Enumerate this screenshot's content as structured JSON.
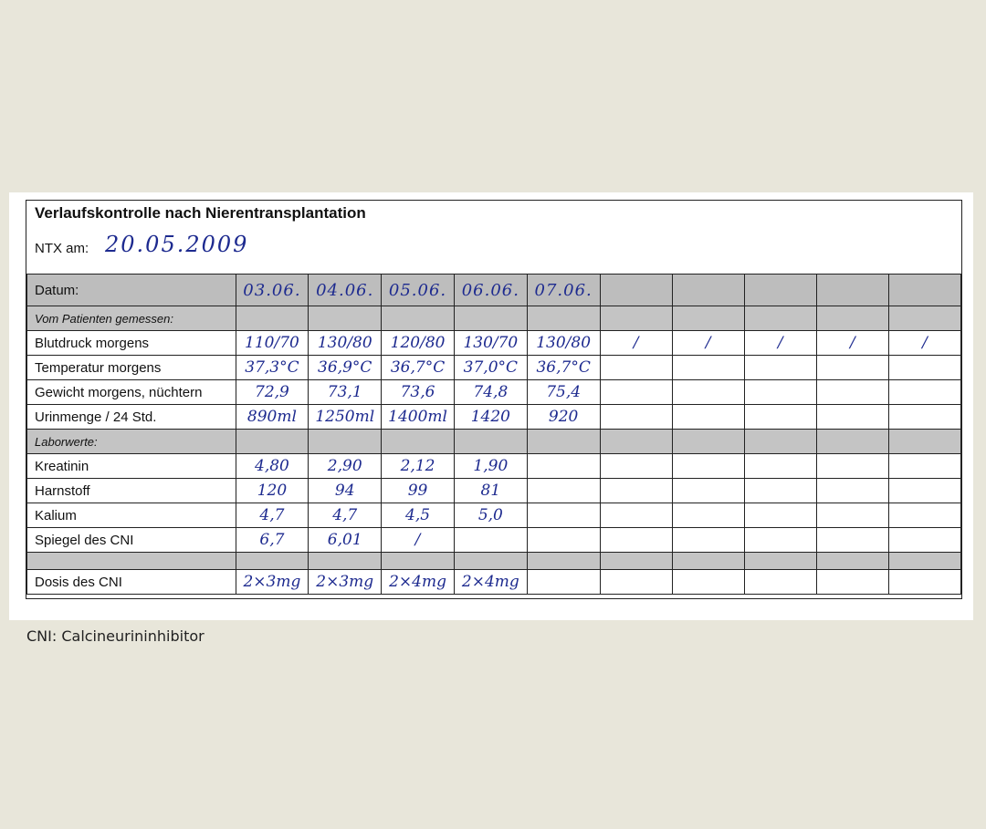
{
  "form": {
    "title": "Verlaufskontrolle nach Nierentransplantation",
    "ntx_label": "NTX am:",
    "ntx_date": "20.05.2009"
  },
  "table": {
    "header": {
      "label": "Datum:",
      "values": [
        "03.06.",
        "04.06.",
        "05.06.",
        "06.06.",
        "07.06.",
        "",
        "",
        "",
        "",
        ""
      ]
    },
    "rows": [
      {
        "type": "section",
        "label": "Vom Patienten gemessen:"
      },
      {
        "type": "data",
        "label": "Blutdruck morgens",
        "values": [
          "110/70",
          "130/80",
          "120/80",
          "130/70",
          "130/80",
          "/",
          "/",
          "/",
          "/",
          "/"
        ]
      },
      {
        "type": "data",
        "label": "Temperatur morgens",
        "values": [
          "37,3°C",
          "36,9°C",
          "36,7°C",
          "37,0°C",
          "36,7°C",
          "",
          "",
          "",
          "",
          ""
        ]
      },
      {
        "type": "data",
        "label": "Gewicht morgens, nüchtern",
        "values": [
          "72,9",
          "73,1",
          "73,6",
          "74,8",
          "75,4",
          "",
          "",
          "",
          "",
          ""
        ]
      },
      {
        "type": "data",
        "label": "Urinmenge / 24 Std.",
        "values": [
          "890ml",
          "1250ml",
          "1400ml",
          "1420",
          "920",
          "",
          "",
          "",
          "",
          ""
        ]
      },
      {
        "type": "section",
        "label": "Laborwerte:"
      },
      {
        "type": "data",
        "label": "Kreatinin",
        "values": [
          "4,80",
          "2,90",
          "2,12",
          "1,90",
          "",
          "",
          "",
          "",
          "",
          ""
        ]
      },
      {
        "type": "data",
        "label": "Harnstoff",
        "values": [
          "120",
          "94",
          "99",
          "81",
          "",
          "",
          "",
          "",
          "",
          ""
        ]
      },
      {
        "type": "data",
        "label": "Kalium",
        "values": [
          "4,7",
          "4,7",
          "4,5",
          "5,0",
          "",
          "",
          "",
          "",
          "",
          ""
        ]
      },
      {
        "type": "data",
        "label": "Spiegel des CNI",
        "values": [
          "6,7",
          "6,01",
          "/",
          "",
          "",
          "",
          "",
          "",
          "",
          ""
        ]
      },
      {
        "type": "blank",
        "label": ""
      },
      {
        "type": "dose",
        "label": "Dosis des CNI",
        "values": [
          "2×3mg",
          "2×3mg",
          "2×4mg",
          "2×4mg",
          "",
          "",
          "",
          "",
          "",
          ""
        ]
      }
    ]
  },
  "caption": "CNI: Calcineurininhibitor"
}
